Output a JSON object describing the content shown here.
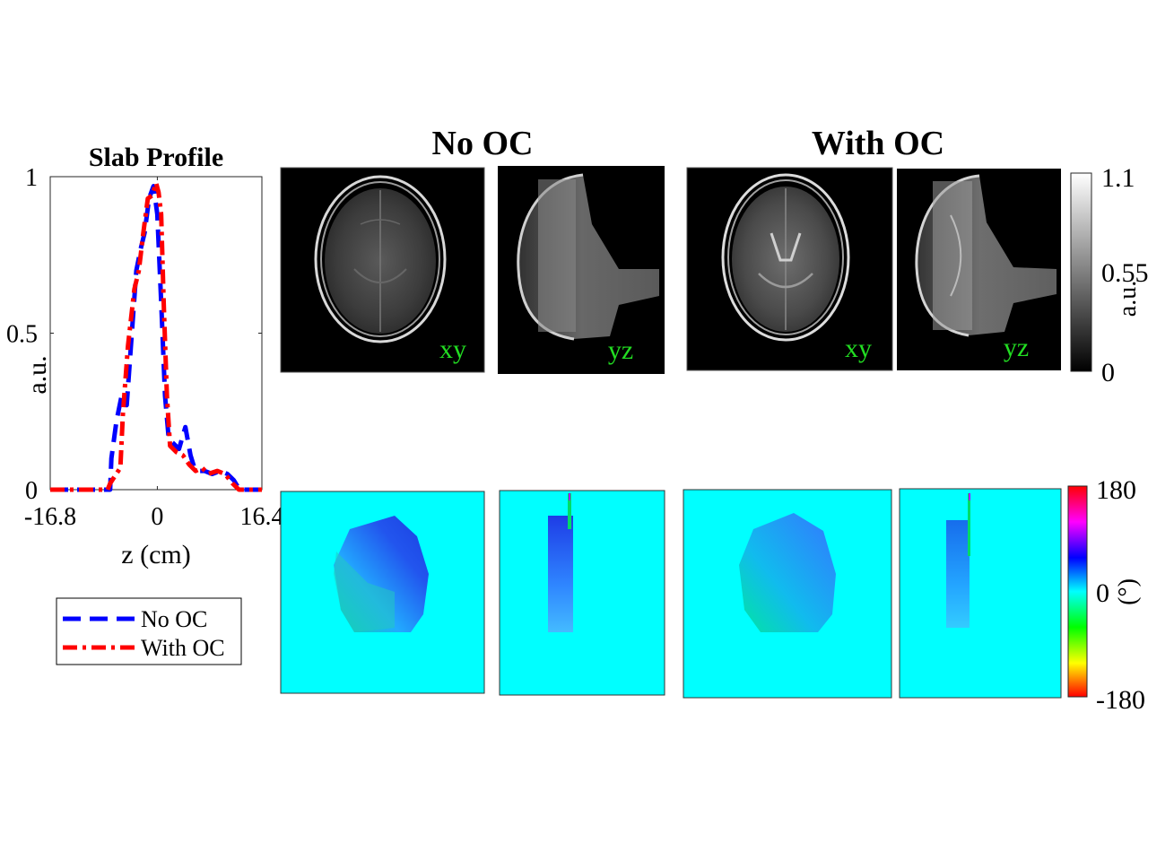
{
  "chart_data": {
    "type": "line",
    "title": "Slab Profile",
    "xlabel": "z (cm)",
    "ylabel": "a.u.",
    "xlim": [
      -16.8,
      16.4
    ],
    "ylim": [
      0,
      1
    ],
    "x_ticks": [
      "-16.8",
      "0",
      "16.4"
    ],
    "y_ticks": [
      "0",
      "0.5",
      "1"
    ],
    "legend": {
      "placement": "below",
      "entries": [
        "No OC",
        "With OC"
      ]
    },
    "series": [
      {
        "name": "No OC",
        "color": "#0000ff",
        "style": "dashed",
        "x": [
          -16.8,
          -7.4,
          -7.2,
          -6.4,
          -5.6,
          -4.8,
          -4.0,
          -3.3,
          -2.6,
          -2.0,
          -1.3,
          -0.6,
          0.0,
          0.6,
          1.2,
          1.8,
          2.4,
          3.4,
          4.4,
          5.2,
          5.8,
          6.3,
          7.4,
          8.6,
          9.9,
          11.0,
          12.0,
          12.9,
          14.6,
          16.4
        ],
        "y": [
          0.0,
          0.0,
          0.1,
          0.22,
          0.3,
          0.27,
          0.5,
          0.7,
          0.77,
          0.82,
          0.93,
          0.97,
          0.88,
          0.6,
          0.3,
          0.16,
          0.15,
          0.13,
          0.2,
          0.11,
          0.07,
          0.06,
          0.06,
          0.05,
          0.06,
          0.05,
          0.03,
          0.0,
          0.0,
          0.0
        ]
      },
      {
        "name": "With OC",
        "color": "#ff0000",
        "style": "dashdot",
        "x": [
          -16.8,
          -7.8,
          -7.4,
          -5.8,
          -5.4,
          -4.6,
          -3.6,
          -2.9,
          -2.2,
          -1.5,
          -0.8,
          -0.2,
          0.2,
          0.6,
          1.0,
          1.5,
          2.0,
          3.0,
          4.0,
          5.0,
          6.0,
          7.0,
          8.0,
          9.4,
          10.6,
          11.8,
          12.8,
          14.4,
          16.4
        ],
        "y": [
          0.0,
          0.0,
          0.02,
          0.07,
          0.24,
          0.46,
          0.64,
          0.7,
          0.82,
          0.93,
          0.94,
          0.98,
          0.95,
          0.88,
          0.6,
          0.3,
          0.14,
          0.12,
          0.11,
          0.08,
          0.06,
          0.07,
          0.05,
          0.06,
          0.05,
          0.02,
          0.0,
          0.0,
          0.0
        ]
      }
    ]
  },
  "columns": [
    {
      "title": "No OC"
    },
    {
      "title": "With OC"
    }
  ],
  "panel_labels": {
    "xy": "xy",
    "yz": "yz"
  },
  "magnitude_colorbar": {
    "ticks": [
      "1.1",
      "0.55",
      "0"
    ],
    "label": "a.u.",
    "range": [
      0,
      1.1
    ]
  },
  "phase_colorbar": {
    "ticks": [
      "180",
      "0",
      "-180"
    ],
    "label": "(°)",
    "range": [
      -180,
      180
    ]
  },
  "colors": {
    "label_green": "#22dd22",
    "phase_background": "#00ffff"
  }
}
